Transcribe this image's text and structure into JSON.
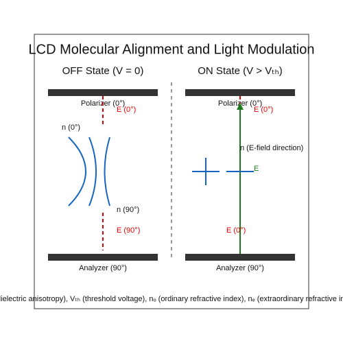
{
  "title": "LCD Molecular Alignment and Light Modulation",
  "off_state": {
    "heading": "OFF State (V = 0)",
    "polarizer": "Polarizer (0°)",
    "e_top": "E (0°)",
    "n_top": "n (0°)",
    "n_bottom": "n (90°)",
    "e_bottom": "E (90°)",
    "analyzer": "Analyzer (90°)"
  },
  "on_state": {
    "heading": "ON State (V > Vₜₕ)",
    "polarizer": "Polarizer (0°)",
    "e_top": "E (0°)",
    "n_label": "n (E-field direction)",
    "field_label": "E",
    "e_bottom": "E (0°)",
    "analyzer": "Analyzer (90°)"
  },
  "footnote": "Δε (dielectric anisotropy), Vₜₕ (threshold voltage), nₒ (ordinary refractive index), nₑ (extraordinary refractive index)"
}
